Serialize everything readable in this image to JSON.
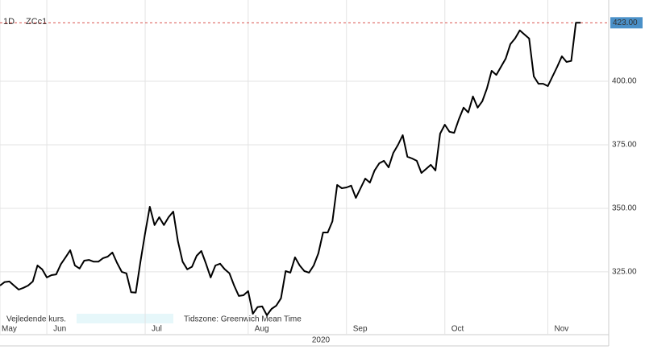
{
  "chart_data": {
    "type": "line",
    "interval": "1D",
    "symbol": "ZCc1",
    "values": [
      319.6,
      321,
      321.2,
      319.6,
      318,
      318.7,
      319.6,
      321.2,
      327.5,
      326,
      322.8,
      323.7,
      324,
      328,
      330.7,
      333.5,
      327.5,
      326.3,
      329.4,
      329.7,
      329,
      329,
      330.4,
      331,
      332.6,
      328.5,
      325,
      324.4,
      317,
      316.8,
      329,
      340.2,
      350.6,
      343.4,
      346.5,
      343.4,
      346.5,
      348.7,
      337,
      329,
      326,
      327,
      331.3,
      333.2,
      328.2,
      322.8,
      327.5,
      328.2,
      326,
      324.4,
      319.6,
      315.5,
      315.8,
      317.4,
      308.5,
      311.1,
      311.4,
      307.9,
      310.4,
      311.7,
      314.6,
      325.3,
      324.7,
      330.7,
      327.5,
      325.3,
      324.7,
      327.5,
      332.3,
      340.5,
      340.5,
      344.9,
      359.2,
      357.9,
      358.2,
      358.9,
      354.1,
      357.9,
      361.7,
      360.1,
      364.9,
      367.7,
      368.7,
      366.1,
      371.8,
      375,
      378.8,
      370.3,
      369.6,
      368.7,
      363.9,
      365.5,
      367.1,
      364.9,
      379.4,
      382.9,
      380.1,
      379.7,
      385.1,
      389.6,
      387.7,
      394,
      389.6,
      392.1,
      397.2,
      404.1,
      402.5,
      405.7,
      408.9,
      414.6,
      416.8,
      420,
      418.4,
      416.8,
      401.9,
      399,
      399,
      398.1,
      401.9,
      405.7,
      409.8,
      407.6,
      408,
      423,
      423
    ],
    "color": "#000000",
    "xlim": [
      0,
      130
    ],
    "xticks": [
      {
        "value": 0,
        "label": "May"
      },
      {
        "value": 10,
        "label": "Jun"
      },
      {
        "value": 31,
        "label": "Jul"
      },
      {
        "value": 53,
        "label": "Aug"
      },
      {
        "value": 74,
        "label": "Sep"
      },
      {
        "value": 95,
        "label": "Oct"
      },
      {
        "value": 117,
        "label": "Nov"
      }
    ],
    "year_label": "2020",
    "ylim": [
      300.6,
      428.8
    ],
    "yticks": [
      {
        "value": 325,
        "label": "325.00"
      },
      {
        "value": 350,
        "label": "350.00"
      },
      {
        "value": 375,
        "label": "375.00"
      },
      {
        "value": 400,
        "label": "400.00"
      }
    ],
    "last_price": {
      "value": 423,
      "label": "423.00"
    },
    "last_price_color": "#4a90c8",
    "grid": true,
    "footer_source": "Vejledende kurs.",
    "footer_timezone": "Tidszone: Greenwich Mean Time"
  }
}
